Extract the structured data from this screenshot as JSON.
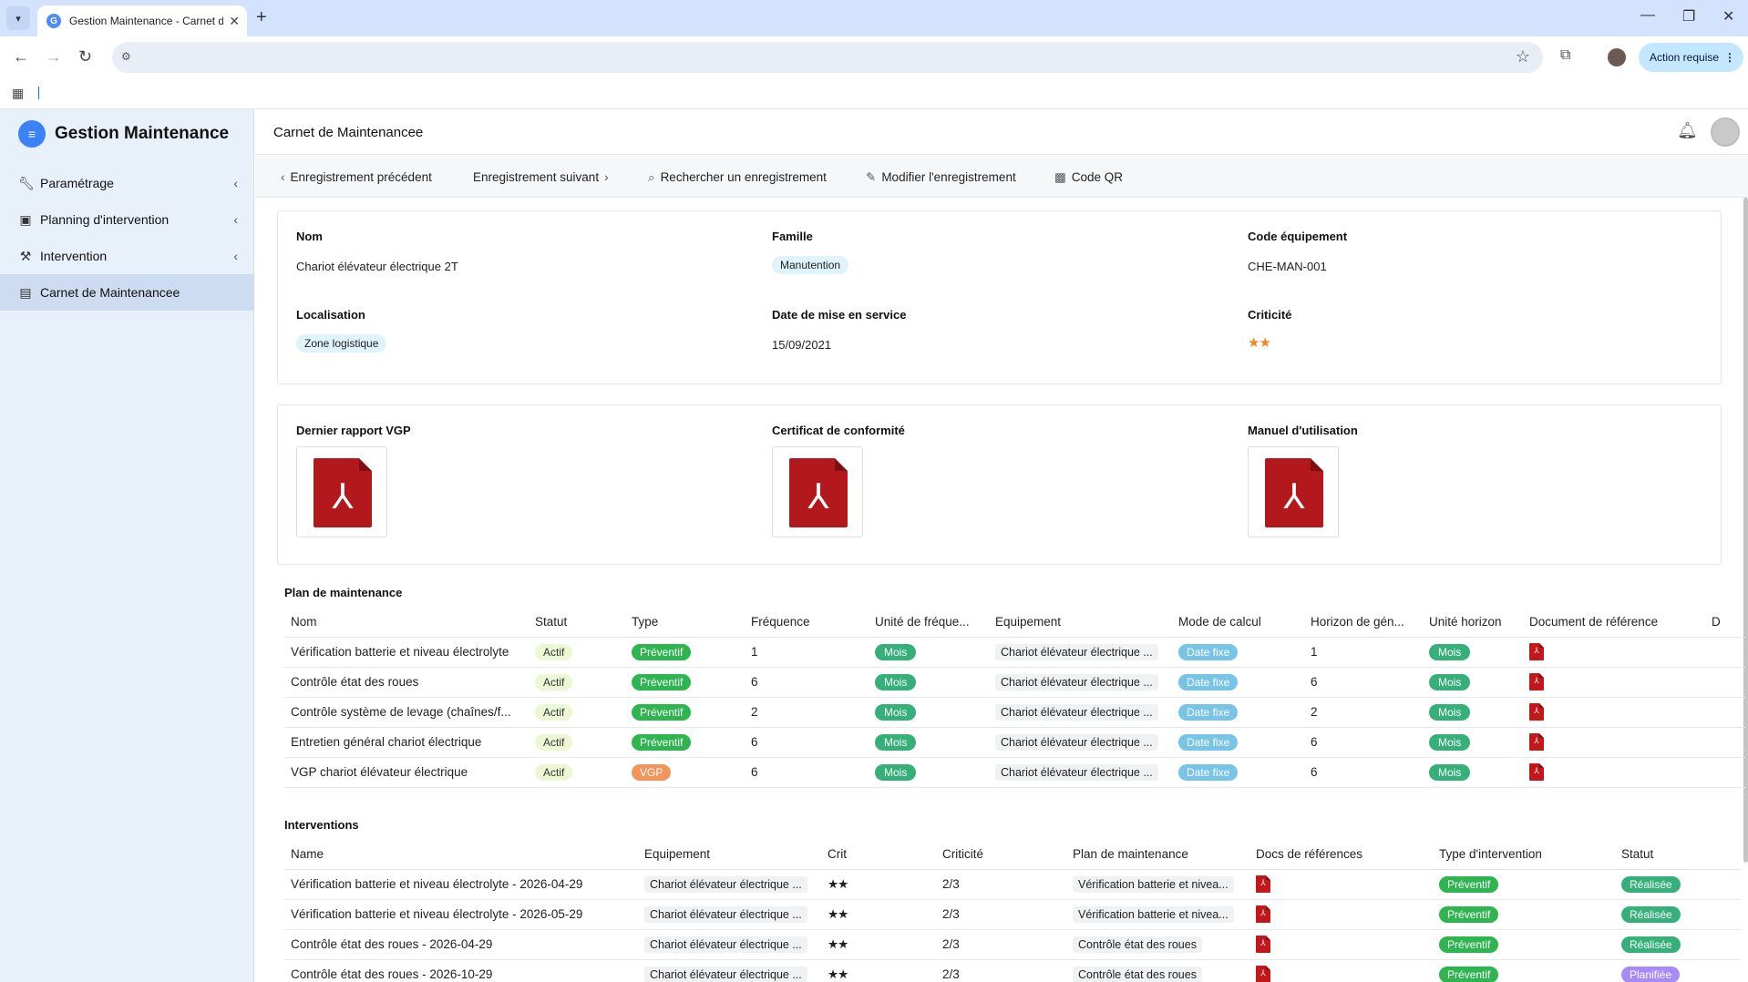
{
  "browser": {
    "tab_title": "Gestion Maintenance - Carnet de Maintenancee",
    "new_tab": "+",
    "action_required": "Action requise"
  },
  "sidebar": {
    "brand": "Gestion Maintenance",
    "items": [
      {
        "label": "Paramétrage",
        "icon": "wrench-icon"
      },
      {
        "label": "Planning d'intervention",
        "icon": "calendar-icon"
      },
      {
        "label": "Intervention",
        "icon": "tool-icon"
      },
      {
        "label": "Carnet de Maintenancee",
        "icon": "book-icon"
      }
    ]
  },
  "header": {
    "title": "Carnet de Maintenancee"
  },
  "actions": {
    "prev": "Enregistrement précédent",
    "next": "Enregistrement suivant",
    "search": "Rechercher un enregistrement",
    "edit": "Modifier l'enregistrement",
    "qr": "Code QR"
  },
  "details": {
    "nom_label": "Nom",
    "nom": "Chariot élévateur électrique 2T",
    "famille_label": "Famille",
    "famille": "Manutention",
    "code_label": "Code équipement",
    "code": "CHE-MAN-001",
    "localisation_label": "Localisation",
    "localisation": "Zone logistique",
    "date_label": "Date de mise en service",
    "date": "15/09/2021",
    "criticite_label": "Criticité",
    "criticite_stars": 2,
    "criticite_display": "★★"
  },
  "documents": {
    "vgp_label": "Dernier rapport VGP",
    "cert_label": "Certificat de conformité",
    "manuel_label": "Manuel d'utilisation"
  },
  "plan": {
    "title": "Plan de maintenance",
    "columns": [
      "Nom",
      "Statut",
      "Type",
      "Fréquence",
      "Unité de fréque...",
      "Equipement",
      "Mode de calcul",
      "Horizon de gén...",
      "Unité horizon",
      "Document de référence",
      "D"
    ],
    "rows": [
      {
        "nom": "Vérification batterie et niveau électrolyte",
        "statut": "Actif",
        "type": "Préventif",
        "freq": "1",
        "unite": "Mois",
        "equip": "Chariot élévateur électrique ...",
        "mode": "Date fixe",
        "horizon": "1",
        "unite_h": "Mois"
      },
      {
        "nom": "Contrôle état des roues",
        "statut": "Actif",
        "type": "Préventif",
        "freq": "6",
        "unite": "Mois",
        "equip": "Chariot élévateur électrique ...",
        "mode": "Date fixe",
        "horizon": "6",
        "unite_h": "Mois"
      },
      {
        "nom": "Contrôle système de levage (chaînes/f...",
        "statut": "Actif",
        "type": "Préventif",
        "freq": "2",
        "unite": "Mois",
        "equip": "Chariot élévateur électrique ...",
        "mode": "Date fixe",
        "horizon": "2",
        "unite_h": "Mois"
      },
      {
        "nom": "Entretien général chariot électrique",
        "statut": "Actif",
        "type": "Préventif",
        "freq": "6",
        "unite": "Mois",
        "equip": "Chariot élévateur électrique ...",
        "mode": "Date fixe",
        "horizon": "6",
        "unite_h": "Mois"
      },
      {
        "nom": "VGP chariot élévateur électrique",
        "statut": "Actif",
        "type": "VGP",
        "freq": "6",
        "unite": "Mois",
        "equip": "Chariot élévateur électrique ...",
        "mode": "Date fixe",
        "horizon": "6",
        "unite_h": "Mois"
      }
    ]
  },
  "interventions": {
    "title": "Interventions",
    "columns": [
      "Name",
      "Equipement",
      "Crit",
      "Criticité",
      "Plan de maintenance",
      "Docs de références",
      "Type d'intervention",
      "Statut"
    ],
    "rows": [
      {
        "name": "Vérification batterie et niveau électrolyte - 2026-04-29",
        "equip": "Chariot élévateur électrique ...",
        "crit": "★★",
        "criticite": "2/3",
        "plan": "Vérification batterie et nivea...",
        "type": "Préventif",
        "statut": "Réalisée"
      },
      {
        "name": "Vérification batterie et niveau électrolyte - 2026-05-29",
        "equip": "Chariot élévateur électrique ...",
        "crit": "★★",
        "criticite": "2/3",
        "plan": "Vérification batterie et nivea...",
        "type": "Préventif",
        "statut": "Réalisée"
      },
      {
        "name": "Contrôle état des roues - 2026-04-29",
        "equip": "Chariot élévateur électrique ...",
        "crit": "★★",
        "criticite": "2/3",
        "plan": "Contrôle état des roues",
        "type": "Préventif",
        "statut": "Réalisée"
      },
      {
        "name": "Contrôle état des roues - 2026-10-29",
        "equip": "Chariot élévateur électrique ...",
        "crit": "★★",
        "criticite": "2/3",
        "plan": "Contrôle état des roues",
        "type": "Préventif",
        "statut": "Planifiée"
      }
    ]
  }
}
